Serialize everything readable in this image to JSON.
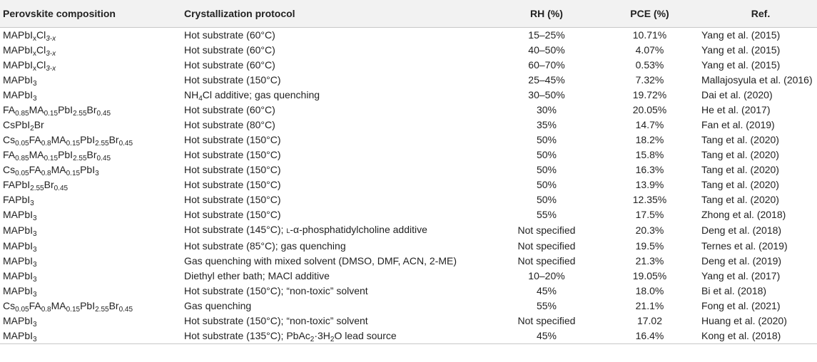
{
  "headers": {
    "composition": "Perovskite composition",
    "protocol": "Crystallization protocol",
    "rh": "RH (%)",
    "pce": "PCE (%)",
    "ref": "Ref."
  },
  "rows": [
    {
      "composition": [
        [
          "MAPbI",
          ""
        ],
        [
          "x",
          "sub"
        ],
        [
          "Cl",
          ""
        ],
        [
          "3-x",
          "sub-i"
        ]
      ],
      "protocol": [
        [
          "Hot substrate (60°C)",
          ""
        ]
      ],
      "rh": "15–25%",
      "pce": "10.71%",
      "ref": "Yang et al. (2015)"
    },
    {
      "composition": [
        [
          "MAPbI",
          ""
        ],
        [
          "x",
          "sub"
        ],
        [
          "Cl",
          ""
        ],
        [
          "3-x",
          "sub-i"
        ]
      ],
      "protocol": [
        [
          "Hot substrate (60°C)",
          ""
        ]
      ],
      "rh": "40–50%",
      "pce": "4.07%",
      "ref": "Yang et al. (2015)"
    },
    {
      "composition": [
        [
          "MAPbI",
          ""
        ],
        [
          "x",
          "sub"
        ],
        [
          "Cl",
          ""
        ],
        [
          "3-x",
          "sub-i"
        ]
      ],
      "protocol": [
        [
          "Hot substrate (60°C)",
          ""
        ]
      ],
      "rh": "60–70%",
      "pce": "0.53%",
      "ref": "Yang et al. (2015)"
    },
    {
      "composition": [
        [
          "MAPbI",
          ""
        ],
        [
          "3",
          "sub"
        ]
      ],
      "protocol": [
        [
          "Hot substrate (150°C)",
          ""
        ]
      ],
      "rh": "25–45%",
      "pce": "7.32%",
      "ref": "Mallajosyula et al. (2016)"
    },
    {
      "composition": [
        [
          "MAPbI",
          ""
        ],
        [
          "3",
          "sub"
        ]
      ],
      "protocol": [
        [
          "NH",
          ""
        ],
        [
          "4",
          "sub"
        ],
        [
          "Cl additive; gas quenching",
          ""
        ]
      ],
      "rh": "30–50%",
      "pce": "19.72%",
      "ref": "Dai et al. (2020)"
    },
    {
      "composition": [
        [
          "FA",
          ""
        ],
        [
          "0.85",
          "sub"
        ],
        [
          "MA",
          ""
        ],
        [
          "0.15",
          "sub"
        ],
        [
          "PbI",
          ""
        ],
        [
          "2.55",
          "sub"
        ],
        [
          "Br",
          ""
        ],
        [
          "0.45",
          "sub"
        ]
      ],
      "protocol": [
        [
          "Hot substrate (60°C)",
          ""
        ]
      ],
      "rh": "30%",
      "pce": "20.05%",
      "ref": "He et al. (2017)"
    },
    {
      "composition": [
        [
          "CsPbI",
          ""
        ],
        [
          "2",
          "sub"
        ],
        [
          "Br",
          ""
        ]
      ],
      "protocol": [
        [
          "Hot substrate (80°C)",
          ""
        ]
      ],
      "rh": "35%",
      "pce": "14.7%",
      "ref": "Fan et al. (2019)"
    },
    {
      "composition": [
        [
          "Cs",
          ""
        ],
        [
          "0.05",
          "sub"
        ],
        [
          "FA",
          ""
        ],
        [
          "0.8",
          "sub"
        ],
        [
          "MA",
          ""
        ],
        [
          "0.15",
          "sub"
        ],
        [
          "PbI",
          ""
        ],
        [
          "2.55",
          "sub"
        ],
        [
          "Br",
          ""
        ],
        [
          "0.45",
          "sub"
        ]
      ],
      "protocol": [
        [
          "Hot substrate (150°C)",
          ""
        ]
      ],
      "rh": "50%",
      "pce": "18.2%",
      "ref": "Tang et al. (2020)"
    },
    {
      "composition": [
        [
          "FA",
          ""
        ],
        [
          "0.85",
          "sub"
        ],
        [
          "MA",
          ""
        ],
        [
          "0.15",
          "sub"
        ],
        [
          "PbI",
          ""
        ],
        [
          "2.55",
          "sub"
        ],
        [
          "Br",
          ""
        ],
        [
          "0.45",
          "sub"
        ]
      ],
      "protocol": [
        [
          "Hot substrate (150°C)",
          ""
        ]
      ],
      "rh": "50%",
      "pce": "15.8%",
      "ref": "Tang et al. (2020)"
    },
    {
      "composition": [
        [
          "Cs",
          ""
        ],
        [
          "0.05",
          "sub"
        ],
        [
          "FA",
          ""
        ],
        [
          "0.8",
          "sub"
        ],
        [
          "MA",
          ""
        ],
        [
          "0.15",
          "sub"
        ],
        [
          "PbI",
          ""
        ],
        [
          "3",
          "sub"
        ]
      ],
      "protocol": [
        [
          "Hot substrate (150°C)",
          ""
        ]
      ],
      "rh": "50%",
      "pce": "16.3%",
      "ref": "Tang et al. (2020)"
    },
    {
      "composition": [
        [
          "FAPbI",
          ""
        ],
        [
          "2.55",
          "sub"
        ],
        [
          "Br",
          ""
        ],
        [
          "0.45",
          "sub"
        ]
      ],
      "protocol": [
        [
          "Hot substrate (150°C)",
          ""
        ]
      ],
      "rh": "50%",
      "pce": "13.9%",
      "ref": "Tang et al. (2020)"
    },
    {
      "composition": [
        [
          "FAPbI",
          ""
        ],
        [
          "3",
          "sub"
        ]
      ],
      "protocol": [
        [
          "Hot substrate (150°C)",
          ""
        ]
      ],
      "rh": "50%",
      "pce": "12.35%",
      "ref": "Tang et al. (2020)"
    },
    {
      "composition": [
        [
          "MAPbI",
          ""
        ],
        [
          "3",
          "sub"
        ]
      ],
      "protocol": [
        [
          "Hot substrate (150°C)",
          ""
        ]
      ],
      "rh": "55%",
      "pce": "17.5%",
      "ref": "Zhong et al. (2018)"
    },
    {
      "composition": [
        [
          "MAPbI",
          ""
        ],
        [
          "3",
          "sub"
        ]
      ],
      "protocol": [
        [
          "Hot substrate (145°C); ",
          ""
        ],
        [
          "L",
          "sc"
        ],
        [
          "-α-phosphatidylcholine additive",
          ""
        ]
      ],
      "rh": "Not specified",
      "pce": "20.3%",
      "ref": "Deng et al. (2018)"
    },
    {
      "composition": [
        [
          "MAPbI",
          ""
        ],
        [
          "3",
          "sub"
        ]
      ],
      "protocol": [
        [
          "Hot substrate (85°C); gas quenching",
          ""
        ]
      ],
      "rh": "Not specified",
      "pce": "19.5%",
      "ref": "Ternes et al. (2019)"
    },
    {
      "composition": [
        [
          "MAPbI",
          ""
        ],
        [
          "3",
          "sub"
        ]
      ],
      "protocol": [
        [
          "Gas quenching with mixed solvent (DMSO, DMF, ACN, 2-ME)",
          ""
        ]
      ],
      "rh": "Not specified",
      "pce": "21.3%",
      "ref": "Deng et al. (2019)"
    },
    {
      "composition": [
        [
          "MAPbI",
          ""
        ],
        [
          "3",
          "sub"
        ]
      ],
      "protocol": [
        [
          "Diethyl ether bath; MACl additive",
          ""
        ]
      ],
      "rh": "10–20%",
      "pce": "19.05%",
      "ref": "Yang et al. (2017)"
    },
    {
      "composition": [
        [
          "MAPbI",
          ""
        ],
        [
          "3",
          "sub"
        ]
      ],
      "protocol": [
        [
          "Hot substrate (150°C); “non-toxic” solvent",
          ""
        ]
      ],
      "rh": "45%",
      "pce": "18.0%",
      "ref": "Bi et al. (2018)"
    },
    {
      "composition": [
        [
          "Cs",
          ""
        ],
        [
          "0.05",
          "sub"
        ],
        [
          "FA",
          ""
        ],
        [
          "0.8",
          "sub"
        ],
        [
          "MA",
          ""
        ],
        [
          "0.15",
          "sub"
        ],
        [
          "PbI",
          ""
        ],
        [
          "2.55",
          "sub"
        ],
        [
          "Br",
          ""
        ],
        [
          "0.45",
          "sub"
        ]
      ],
      "protocol": [
        [
          "Gas quenching",
          ""
        ]
      ],
      "rh": "55%",
      "pce": "21.1%",
      "ref": "Fong et al. (2021)"
    },
    {
      "composition": [
        [
          "MAPbI",
          ""
        ],
        [
          "3",
          "sub"
        ]
      ],
      "protocol": [
        [
          "Hot substrate (150°C); “non-toxic” solvent",
          ""
        ]
      ],
      "rh": "Not specified",
      "pce": "17.02",
      "ref": "Huang et al. (2020)"
    },
    {
      "composition": [
        [
          "MAPbI",
          ""
        ],
        [
          "3",
          "sub"
        ]
      ],
      "protocol": [
        [
          "Hot substrate (135°C); PbAc",
          ""
        ],
        [
          "2",
          "sub"
        ],
        [
          "·3H",
          ""
        ],
        [
          "2",
          "sub"
        ],
        [
          "O lead source",
          ""
        ]
      ],
      "rh": "45%",
      "pce": "16.4%",
      "ref": "Kong et al. (2018)"
    }
  ]
}
